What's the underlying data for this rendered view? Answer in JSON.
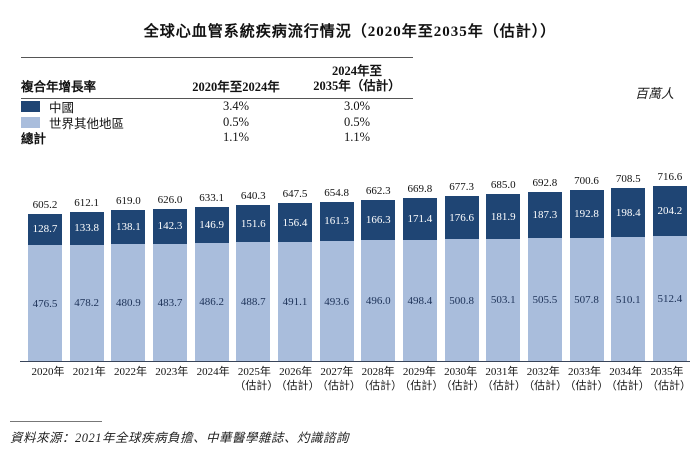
{
  "title": "全球心血管系統疾病流行情況（2020年至2035年（估計））",
  "unit_label": "百萬人",
  "colors": {
    "china_dark": "#1f4574",
    "world_light": "#a9bddc"
  },
  "cagr_table": {
    "header": {
      "col1": "複合年增長率",
      "col2": "2020年至2024年",
      "col3_line1": "2024年至",
      "col3_line2": "2035年（估計）"
    },
    "rows": [
      {
        "label": "中國",
        "swatch": "china",
        "col1": "3.4%",
        "col2": "3.0%",
        "bold": false
      },
      {
        "label": "世界其他地區",
        "swatch": "world",
        "col1": "0.5%",
        "col2": "0.5%",
        "bold": false
      },
      {
        "label": "總計",
        "swatch": "none",
        "col1": "1.1%",
        "col2": "1.1%",
        "bold": true
      }
    ]
  },
  "chart_data": {
    "type": "bar",
    "stacked": true,
    "unit": "百萬人",
    "categories": [
      "2020年",
      "2021年",
      "2022年",
      "2023年",
      "2024年",
      "2025年",
      "2026年",
      "2027年",
      "2028年",
      "2029年",
      "2030年",
      "2031年",
      "2032年",
      "2033年",
      "2034年",
      "2035年"
    ],
    "category_subs": [
      "",
      "",
      "",
      "",
      "",
      "（估計）",
      "（估計）",
      "（估計）",
      "（估計）",
      "（估計）",
      "（估計）",
      "（估計）",
      "（估計）",
      "（估計）",
      "（估計）",
      "（估計）"
    ],
    "series": [
      {
        "name": "中國",
        "color": "#1f4574",
        "values": [
          128.7,
          133.8,
          138.1,
          142.3,
          146.9,
          151.6,
          156.4,
          161.3,
          166.3,
          171.4,
          176.6,
          181.9,
          187.3,
          192.8,
          198.4,
          204.2
        ]
      },
      {
        "name": "世界其他地區",
        "color": "#a9bddc",
        "values": [
          476.5,
          478.2,
          480.9,
          483.7,
          486.2,
          488.7,
          491.1,
          493.6,
          496.0,
          498.4,
          500.8,
          503.1,
          505.5,
          507.8,
          510.1,
          512.4
        ]
      }
    ],
    "totals": [
      605.2,
      612.1,
      619.0,
      626.0,
      633.1,
      640.3,
      647.5,
      654.8,
      662.3,
      669.8,
      677.3,
      685.0,
      692.8,
      700.6,
      708.5,
      716.6
    ],
    "ylim": [
      0,
      760
    ],
    "legend_position": "table-top-left"
  },
  "source": "資料來源：2021年全球疾病負擔、中華醫學雜誌、灼識諮詢"
}
